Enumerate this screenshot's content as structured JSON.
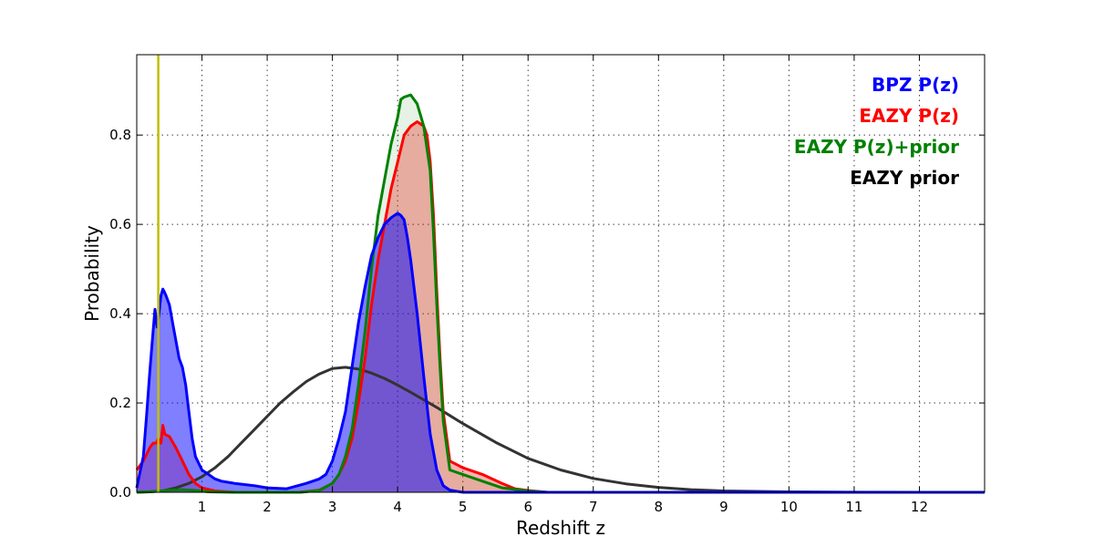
{
  "chart_data": {
    "type": "area",
    "xlabel": "Redshift z",
    "ylabel": "Probability",
    "xlim": [
      0,
      13
    ],
    "ylim": [
      0,
      0.98
    ],
    "x_ticks": [
      1,
      2,
      3,
      4,
      5,
      6,
      7,
      8,
      9,
      10,
      11,
      12
    ],
    "x_tick_labels": [
      "1",
      "2",
      "3",
      "4",
      "5",
      "6",
      "7",
      "8",
      "9",
      "10",
      "11",
      "12"
    ],
    "y_ticks": [
      0.0,
      0.2,
      0.4,
      0.6,
      0.8
    ],
    "y_tick_labels": [
      "0.0",
      "0.2",
      "0.4",
      "0.6",
      "0.8"
    ],
    "grid": true,
    "legend_position": "top-right",
    "vertical_marker": {
      "x": 0.33,
      "color": "#bfbf00"
    },
    "series": [
      {
        "name": "BPZ P(z)",
        "color": "#0000ff",
        "fill": "#0000ff",
        "fill_opacity": 0.5,
        "x": [
          0,
          0.1,
          0.15,
          0.2,
          0.25,
          0.28,
          0.31,
          0.34,
          0.37,
          0.4,
          0.42,
          0.45,
          0.5,
          0.55,
          0.6,
          0.65,
          0.7,
          0.75,
          0.8,
          0.85,
          0.9,
          1.0,
          1.1,
          1.2,
          1.3,
          1.5,
          1.8,
          2.0,
          2.3,
          2.6,
          2.8,
          2.9,
          3.0,
          3.1,
          3.2,
          3.3,
          3.4,
          3.5,
          3.6,
          3.7,
          3.8,
          3.9,
          3.95,
          4.0,
          4.05,
          4.1,
          4.15,
          4.2,
          4.3,
          4.4,
          4.5,
          4.6,
          4.7,
          4.8,
          5.0,
          5.5,
          13
        ],
        "y": [
          0.01,
          0.08,
          0.17,
          0.27,
          0.36,
          0.41,
          0.37,
          0.4,
          0.44,
          0.455,
          0.45,
          0.44,
          0.42,
          0.38,
          0.34,
          0.3,
          0.28,
          0.24,
          0.18,
          0.12,
          0.08,
          0.05,
          0.04,
          0.03,
          0.025,
          0.02,
          0.015,
          0.01,
          0.008,
          0.02,
          0.03,
          0.04,
          0.07,
          0.12,
          0.18,
          0.28,
          0.38,
          0.46,
          0.53,
          0.57,
          0.6,
          0.615,
          0.62,
          0.625,
          0.62,
          0.61,
          0.57,
          0.52,
          0.4,
          0.26,
          0.13,
          0.05,
          0.015,
          0.005,
          0.0,
          0.0,
          0.0
        ]
      },
      {
        "name": "EAZY P(z)",
        "color": "#ff0000",
        "fill": "#ff0000",
        "fill_opacity": 0.3,
        "x": [
          0,
          0.1,
          0.2,
          0.25,
          0.3,
          0.33,
          0.37,
          0.4,
          0.43,
          0.5,
          0.6,
          0.7,
          0.8,
          0.9,
          1.0,
          1.2,
          1.5,
          2.0,
          2.5,
          2.8,
          3.0,
          3.1,
          3.2,
          3.3,
          3.4,
          3.5,
          3.6,
          3.7,
          3.8,
          3.9,
          4.0,
          4.1,
          4.2,
          4.3,
          4.4,
          4.45,
          4.5,
          4.55,
          4.6,
          4.65,
          4.7,
          4.8,
          5.0,
          5.3,
          5.6,
          5.8,
          6.0,
          6.3,
          13
        ],
        "y": [
          0.05,
          0.07,
          0.1,
          0.11,
          0.11,
          0.12,
          0.11,
          0.15,
          0.13,
          0.125,
          0.1,
          0.07,
          0.04,
          0.02,
          0.01,
          0.003,
          0.0,
          0.0,
          0.0,
          0.005,
          0.02,
          0.04,
          0.07,
          0.12,
          0.2,
          0.3,
          0.42,
          0.52,
          0.6,
          0.68,
          0.74,
          0.8,
          0.82,
          0.83,
          0.82,
          0.8,
          0.74,
          0.62,
          0.45,
          0.3,
          0.18,
          0.07,
          0.055,
          0.04,
          0.02,
          0.008,
          0.004,
          0.0,
          0.0
        ]
      },
      {
        "name": "EAZY P(z)+prior",
        "color": "#008000",
        "fill": "#008000",
        "fill_opacity": 0.1,
        "x": [
          0,
          0.3,
          0.5,
          0.7,
          0.9,
          1.1,
          1.5,
          2.0,
          2.5,
          2.8,
          3.0,
          3.1,
          3.2,
          3.3,
          3.4,
          3.5,
          3.6,
          3.7,
          3.8,
          3.9,
          4.0,
          4.05,
          4.1,
          4.2,
          4.3,
          4.4,
          4.5,
          4.55,
          4.6,
          4.65,
          4.7,
          4.8,
          5.0,
          5.3,
          5.6,
          6.0,
          6.3,
          13
        ],
        "y": [
          0.0,
          0.002,
          0.005,
          0.006,
          0.004,
          0.001,
          0.0,
          0.0,
          0.0,
          0.004,
          0.02,
          0.04,
          0.08,
          0.14,
          0.24,
          0.36,
          0.5,
          0.62,
          0.7,
          0.78,
          0.84,
          0.88,
          0.885,
          0.89,
          0.87,
          0.82,
          0.72,
          0.58,
          0.42,
          0.28,
          0.16,
          0.05,
          0.04,
          0.025,
          0.01,
          0.003,
          0.0,
          0.0
        ]
      },
      {
        "name": "EAZY prior",
        "color": "#333333",
        "fill": "none",
        "fill_opacity": 0,
        "x": [
          0,
          0.2,
          0.4,
          0.6,
          0.8,
          1.0,
          1.2,
          1.4,
          1.6,
          1.8,
          2.0,
          2.2,
          2.4,
          2.6,
          2.8,
          3.0,
          3.2,
          3.4,
          3.6,
          3.8,
          4.0,
          4.2,
          4.4,
          4.6,
          4.8,
          5.0,
          5.5,
          6.0,
          6.5,
          7.0,
          7.5,
          8.0,
          8.5,
          9.0,
          10.0,
          11.0,
          12.0,
          13.0
        ],
        "y": [
          0.0,
          0.001,
          0.003,
          0.01,
          0.02,
          0.035,
          0.055,
          0.08,
          0.11,
          0.14,
          0.17,
          0.2,
          0.225,
          0.248,
          0.265,
          0.277,
          0.28,
          0.276,
          0.267,
          0.255,
          0.24,
          0.224,
          0.207,
          0.19,
          0.172,
          0.154,
          0.112,
          0.076,
          0.05,
          0.031,
          0.019,
          0.011,
          0.006,
          0.003,
          0.001,
          0.0003,
          0.0001,
          0.0
        ]
      }
    ]
  }
}
